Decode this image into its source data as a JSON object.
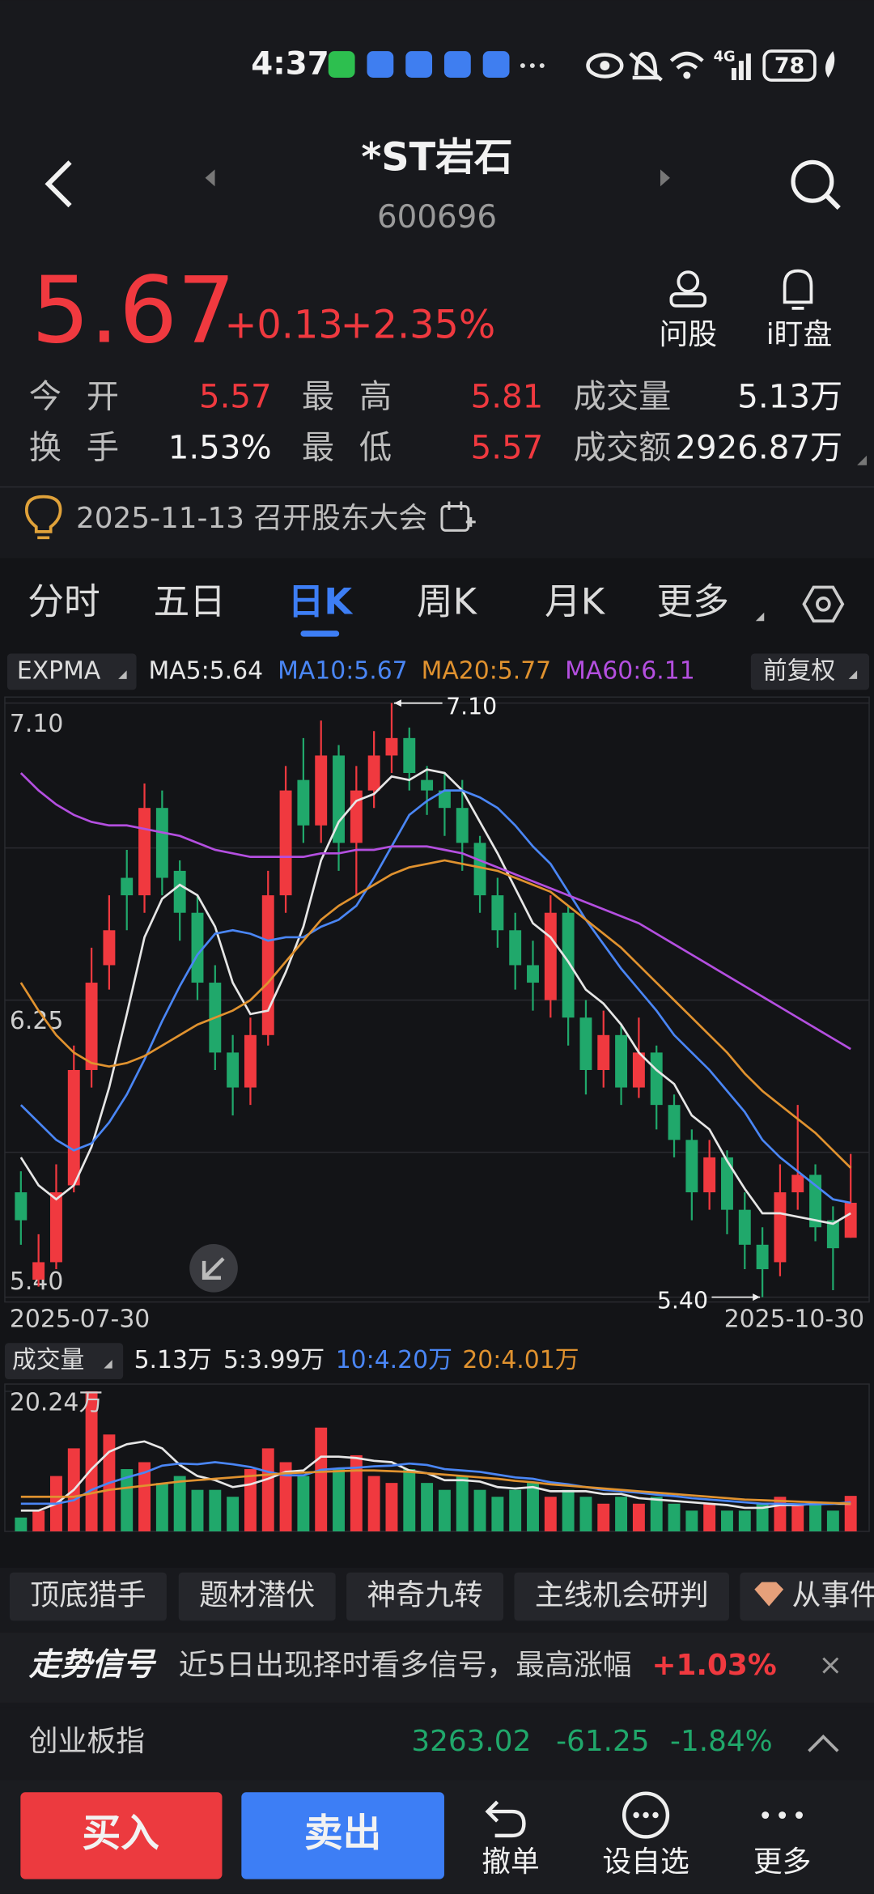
{
  "status_bar": {
    "time": "4:37",
    "network": "4G",
    "battery": "78"
  },
  "header": {
    "name": "*ST岩石",
    "code": "600696"
  },
  "quote": {
    "price": "5.67",
    "change": "+0.13",
    "change_pct": "+2.35%",
    "actions": [
      "问股",
      "i盯盘"
    ]
  },
  "stats": [
    [
      {
        "label": "今 开",
        "value": "5.57"
      },
      {
        "label": "最 高",
        "value": "5.81"
      },
      {
        "label": "成交量",
        "value": "5.13万"
      }
    ],
    [
      {
        "label": "换 手",
        "value": "1.53%"
      },
      {
        "label": "最 低",
        "value": "5.57"
      },
      {
        "label": "成交额",
        "value": "2926.87万"
      }
    ]
  ],
  "notice": "2025-11-13 召开股东大会",
  "tabs": [
    "分时",
    "五日",
    "日K",
    "周K",
    "月K",
    "更多"
  ],
  "active_tab": 2,
  "chart_data": {
    "type": "candlestick",
    "indicator": "EXPMA",
    "adjust": "前复权",
    "up_color": "#f0393f",
    "down_color": "#20a86b",
    "categories": [
      "2025-07-30",
      null,
      null,
      null,
      null,
      null,
      null,
      null,
      null,
      null,
      null,
      null,
      null,
      null,
      null,
      null,
      null,
      null,
      null,
      null,
      null,
      null,
      null,
      null,
      null,
      null,
      null,
      null,
      null,
      null,
      null,
      null,
      null,
      null,
      null,
      null,
      null,
      null,
      null,
      null,
      null,
      null,
      null,
      null,
      null,
      null,
      null,
      "2025-10-30"
    ],
    "open": [
      5.7,
      5.45,
      5.5,
      5.72,
      6.05,
      6.35,
      6.6,
      6.55,
      6.8,
      6.62,
      6.5,
      6.3,
      6.1,
      6.0,
      6.15,
      6.55,
      6.88,
      6.75,
      6.95,
      6.7,
      6.85,
      6.95,
      7.0,
      6.88,
      6.85,
      6.8,
      6.7,
      6.55,
      6.45,
      6.35,
      6.25,
      6.5,
      6.2,
      6.05,
      6.15,
      6.0,
      6.1,
      5.95,
      5.85,
      5.7,
      5.8,
      5.65,
      5.55,
      5.5,
      5.7,
      5.75,
      5.62,
      5.57
    ],
    "high": [
      5.76,
      5.58,
      5.78,
      6.12,
      6.4,
      6.55,
      6.68,
      6.87,
      6.85,
      6.65,
      6.55,
      6.35,
      6.15,
      6.2,
      6.62,
      6.92,
      7.0,
      7.05,
      6.98,
      6.92,
      7.02,
      7.1,
      7.03,
      6.92,
      6.9,
      6.88,
      6.72,
      6.6,
      6.5,
      6.42,
      6.55,
      6.52,
      6.25,
      6.22,
      6.18,
      6.2,
      6.12,
      5.98,
      5.88,
      5.85,
      5.82,
      5.7,
      5.6,
      5.78,
      5.95,
      5.78,
      5.66,
      5.81
    ],
    "low": [
      5.55,
      5.43,
      5.48,
      5.7,
      6.0,
      6.28,
      6.45,
      6.5,
      6.55,
      6.42,
      6.25,
      6.05,
      5.92,
      5.95,
      6.12,
      6.5,
      6.7,
      6.7,
      6.62,
      6.55,
      6.8,
      6.9,
      6.85,
      6.78,
      6.72,
      6.62,
      6.5,
      6.4,
      6.28,
      6.22,
      6.2,
      6.12,
      5.98,
      6.0,
      5.95,
      5.97,
      5.88,
      5.8,
      5.62,
      5.65,
      5.58,
      5.48,
      5.4,
      5.46,
      5.65,
      5.56,
      5.42,
      5.57
    ],
    "close": [
      5.62,
      5.5,
      5.7,
      6.05,
      6.3,
      6.45,
      6.55,
      6.8,
      6.6,
      6.5,
      6.3,
      6.1,
      6.0,
      6.15,
      6.55,
      6.85,
      6.75,
      6.95,
      6.7,
      6.85,
      6.95,
      7.0,
      6.9,
      6.85,
      6.8,
      6.7,
      6.55,
      6.45,
      6.35,
      6.3,
      6.5,
      6.2,
      6.05,
      6.15,
      6.0,
      6.1,
      5.95,
      5.85,
      5.7,
      5.8,
      5.65,
      5.55,
      5.48,
      5.7,
      5.75,
      5.6,
      5.54,
      5.67
    ],
    "ylim": [
      5.4,
      7.1
    ],
    "yticks": [
      {
        "value": 7.1,
        "label": "7.10"
      },
      6.25,
      {
        "value": 5.4,
        "label": "5.40"
      }
    ],
    "annotations": [
      {
        "text": "7.10",
        "index": 21,
        "value": 7.1
      },
      {
        "text": "5.40",
        "index": 42,
        "value": 5.4
      }
    ],
    "series": [
      {
        "name": "MA5",
        "legend_label": "MA5:5.64",
        "color": "#e6e6e6",
        "values": [
          5.8,
          5.72,
          5.68,
          5.72,
          5.83,
          6.0,
          6.21,
          6.43,
          6.54,
          6.58,
          6.55,
          6.46,
          6.3,
          6.21,
          6.22,
          6.33,
          6.46,
          6.65,
          6.76,
          6.82,
          6.84,
          6.89,
          6.88,
          6.91,
          6.9,
          6.85,
          6.76,
          6.67,
          6.57,
          6.47,
          6.43,
          6.36,
          6.28,
          6.24,
          6.18,
          6.1,
          6.05,
          6.01,
          5.92,
          5.88,
          5.79,
          5.71,
          5.64,
          5.64,
          5.63,
          5.62,
          5.61,
          5.64
        ]
      },
      {
        "name": "MA10",
        "legend_label": "MA10:5.67",
        "color": "#4a86f5",
        "values": [
          5.95,
          5.9,
          5.85,
          5.82,
          5.84,
          5.9,
          5.98,
          6.08,
          6.19,
          6.29,
          6.38,
          6.44,
          6.45,
          6.44,
          6.42,
          6.43,
          6.43,
          6.46,
          6.48,
          6.52,
          6.6,
          6.69,
          6.78,
          6.82,
          6.85,
          6.85,
          6.83,
          6.8,
          6.75,
          6.69,
          6.64,
          6.56,
          6.48,
          6.41,
          6.34,
          6.28,
          6.22,
          6.15,
          6.1,
          6.05,
          5.99,
          5.93,
          5.85,
          5.8,
          5.76,
          5.72,
          5.68,
          5.67
        ]
      },
      {
        "name": "MA20",
        "legend_label": "MA20:5.77",
        "color": "#e0922f",
        "values": [
          6.3,
          6.22,
          6.15,
          6.1,
          6.07,
          6.06,
          6.07,
          6.09,
          6.12,
          6.15,
          6.18,
          6.2,
          6.22,
          6.25,
          6.3,
          6.36,
          6.42,
          6.48,
          6.52,
          6.55,
          6.58,
          6.61,
          6.63,
          6.64,
          6.65,
          6.64,
          6.63,
          6.62,
          6.6,
          6.58,
          6.56,
          6.52,
          6.48,
          6.44,
          6.4,
          6.35,
          6.3,
          6.25,
          6.2,
          6.15,
          6.1,
          6.04,
          5.99,
          5.95,
          5.91,
          5.87,
          5.82,
          5.77
        ]
      },
      {
        "name": "MA60",
        "legend_label": "MA60:6.11",
        "color": "#b44fe0",
        "values": [
          6.9,
          6.85,
          6.81,
          6.78,
          6.76,
          6.75,
          6.75,
          6.74,
          6.73,
          6.72,
          6.7,
          6.68,
          6.67,
          6.66,
          6.66,
          6.66,
          6.66,
          6.67,
          6.67,
          6.68,
          6.68,
          6.69,
          6.69,
          6.69,
          6.68,
          6.67,
          6.65,
          6.63,
          6.61,
          6.59,
          6.57,
          6.55,
          6.53,
          6.51,
          6.49,
          6.47,
          6.44,
          6.41,
          6.38,
          6.35,
          6.32,
          6.29,
          6.26,
          6.23,
          6.2,
          6.17,
          6.14,
          6.11
        ]
      }
    ],
    "volume": {
      "title": "成交量",
      "value_label": "5.13万",
      "ylim": [
        0,
        20.24
      ],
      "yticks": [
        {
          "value": 20.24,
          "label": "20.24万"
        }
      ],
      "values": [
        2,
        3,
        8,
        12,
        20.24,
        14,
        9,
        10,
        7,
        8,
        6,
        6,
        5,
        9,
        12,
        10,
        8,
        15,
        9,
        11,
        8,
        7,
        9,
        7,
        6,
        8,
        6,
        5,
        6,
        7,
        5,
        6,
        5,
        4,
        5,
        4,
        5,
        4,
        3,
        4,
        3,
        3,
        4,
        5,
        4,
        4,
        3,
        5.13
      ],
      "series": [
        {
          "name": "5",
          "legend_label": "5:3.99万",
          "color": "#e6e6e6",
          "values": [
            3,
            3,
            4,
            6,
            9,
            11.5,
            12.6,
            13.0,
            12.0,
            9.6,
            8.0,
            7.4,
            6.4,
            6.8,
            7.6,
            8.6,
            8.8,
            10.8,
            10.8,
            10.6,
            10.2,
            10.0,
            8.8,
            8.4,
            7.4,
            7.4,
            7.2,
            6.4,
            6.2,
            6.4,
            5.8,
            5.8,
            5.8,
            5.4,
            5.4,
            4.8,
            4.6,
            4.4,
            4.2,
            4.0,
            3.8,
            3.4,
            3.4,
            3.8,
            3.8,
            4.0,
            4.0,
            3.99
          ]
        },
        {
          "name": "10",
          "legend_label": "10:4.20万",
          "color": "#4a86f5",
          "values": [
            4,
            4,
            4,
            4.5,
            6,
            7,
            7.8,
            8.5,
            9.5,
            9.8,
            9.7,
            10,
            9.7,
            9.3,
            8.6,
            8.1,
            8.1,
            8.9,
            9.1,
            9.2,
            9.4,
            9.5,
            9.8,
            9.6,
            9.0,
            8.8,
            8.6,
            8.2,
            7.8,
            7.6,
            7.1,
            6.8,
            6.4,
            6.0,
            5.8,
            5.6,
            5.3,
            5.1,
            4.8,
            4.6,
            4.4,
            4.2,
            4.0,
            4.0,
            3.9,
            3.9,
            4.0,
            4.2
          ]
        },
        {
          "name": "20",
          "legend_label": "20:4.01万",
          "color": "#e0922f",
          "values": [
            5,
            5,
            5,
            5,
            5.5,
            6,
            6.3,
            6.6,
            6.9,
            7.2,
            7.4,
            7.6,
            7.8,
            8,
            8.2,
            8.4,
            8.5,
            8.6,
            8.7,
            8.8,
            8.8,
            8.7,
            8.6,
            8.4,
            8.2,
            8.0,
            7.8,
            7.6,
            7.3,
            7.1,
            6.8,
            6.6,
            6.4,
            6.2,
            6.0,
            5.8,
            5.6,
            5.4,
            5.2,
            5.0,
            4.8,
            4.6,
            4.5,
            4.4,
            4.3,
            4.2,
            4.1,
            4.01
          ]
        }
      ]
    }
  },
  "tools": [
    "顶底猎手",
    "题材潜伏",
    "神奇九转",
    "主线机会研判",
    "从事件"
  ],
  "signal": {
    "title": "走势信号",
    "text": "近5日出现择时看多信号，最高涨幅",
    "value": "+1.03%"
  },
  "index_bar": {
    "name": "创业板指",
    "value": "3263.02",
    "change": "-61.25",
    "change_pct": "-1.84%"
  },
  "bottom": {
    "buy": "买入",
    "sell": "卖出",
    "actions": [
      "撤单",
      "设自选",
      "更多"
    ]
  }
}
